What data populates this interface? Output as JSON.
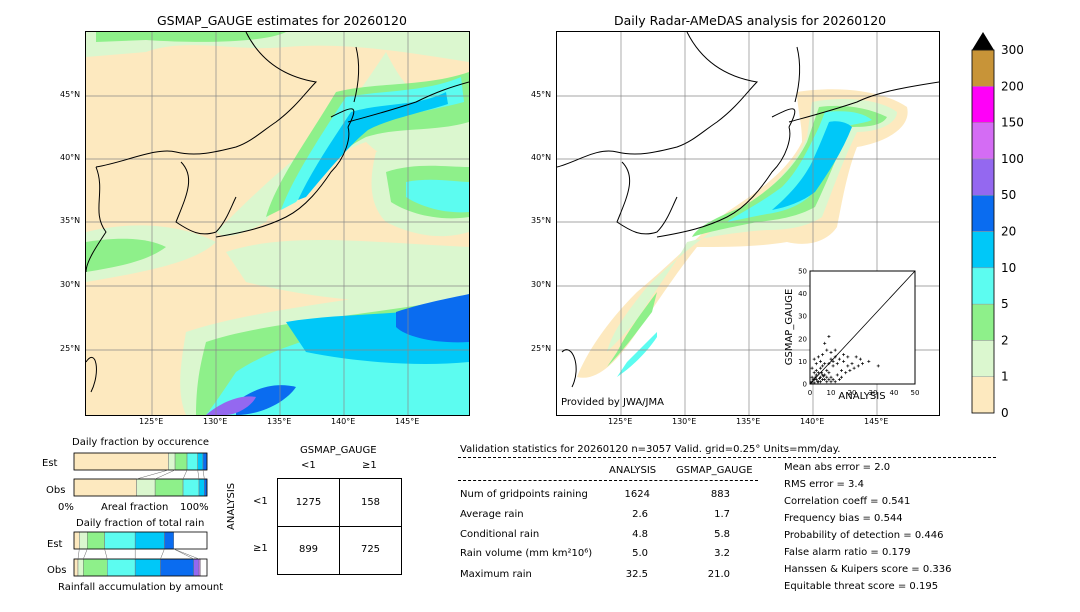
{
  "left_map": {
    "title": "GSMAP_GAUGE estimates for 20260120",
    "lat_labels": [
      "45°N",
      "40°N",
      "35°N",
      "30°N",
      "25°N"
    ],
    "lon_labels": [
      "125°E",
      "130°E",
      "135°E",
      "140°E",
      "145°E"
    ]
  },
  "right_map": {
    "title": "Daily Radar-AMeDAS analysis for 20260120",
    "lat_labels": [
      "45°N",
      "40°N",
      "35°N",
      "30°N",
      "25°N"
    ],
    "lon_labels": [
      "125°E",
      "130°E",
      "135°E",
      "140°E",
      "145°E"
    ],
    "credit": "Provided by JWA/JMA"
  },
  "colorbar": {
    "levels": [
      "0",
      "1",
      "2",
      "5",
      "10",
      "20",
      "50",
      "100",
      "150",
      "200",
      "300"
    ],
    "colors": [
      "#fde9bf",
      "#dbf7cf",
      "#8ef08a",
      "#5cfcf0",
      "#00c8f8",
      "#0a6cf0",
      "#9468f0",
      "#d46cf4",
      "#ff00f8",
      "#c89438"
    ],
    "over_color": "#000000"
  },
  "chart_data": [
    {
      "type": "scatter",
      "title": "",
      "xlabel": "ANALYSIS",
      "ylabel": "GSMAP_GAUGE",
      "xlim": [
        0,
        50
      ],
      "ylim": [
        0,
        50
      ],
      "ticks": [
        "0",
        "10",
        "20",
        "30",
        "40",
        "50"
      ],
      "diagonal": true,
      "points": [
        [
          1,
          1
        ],
        [
          2,
          0.5
        ],
        [
          3,
          2
        ],
        [
          4,
          1
        ],
        [
          5,
          3
        ],
        [
          6,
          2
        ],
        [
          7,
          4
        ],
        [
          8,
          1
        ],
        [
          9,
          2
        ],
        [
          10,
          3
        ],
        [
          11,
          2
        ],
        [
          12,
          1
        ],
        [
          13,
          4
        ],
        [
          14,
          2
        ],
        [
          15,
          3
        ],
        [
          2,
          5
        ],
        [
          3,
          6
        ],
        [
          5,
          7
        ],
        [
          6,
          8
        ],
        [
          8,
          6
        ],
        [
          9,
          9
        ],
        [
          11,
          8
        ],
        [
          13,
          9
        ],
        [
          15,
          6
        ],
        [
          16,
          10
        ],
        [
          18,
          8
        ],
        [
          20,
          9
        ],
        [
          22,
          12
        ],
        [
          24,
          11
        ],
        [
          28,
          10
        ],
        [
          32.5,
          8
        ],
        [
          4,
          12
        ],
        [
          6,
          13
        ],
        [
          8,
          15
        ],
        [
          10,
          14
        ],
        [
          7,
          18
        ],
        [
          9,
          21
        ],
        [
          12,
          15
        ],
        [
          1,
          3
        ],
        [
          2,
          2
        ],
        [
          3,
          4
        ],
        [
          4,
          5
        ],
        [
          5,
          1
        ],
        [
          6,
          4
        ],
        [
          7,
          2
        ],
        [
          8,
          3
        ],
        [
          9,
          5
        ],
        [
          10,
          1
        ],
        [
          0.5,
          0.5
        ],
        [
          1.5,
          2
        ],
        [
          2.5,
          3
        ],
        [
          3.5,
          1
        ],
        [
          4.5,
          2.5
        ],
        [
          5.5,
          5
        ],
        [
          6.5,
          3.5
        ],
        [
          17,
          5
        ],
        [
          19,
          6
        ],
        [
          21,
          7
        ],
        [
          23,
          8
        ],
        [
          25,
          9
        ],
        [
          14,
          11
        ],
        [
          16,
          13
        ],
        [
          18,
          12
        ],
        [
          11,
          10
        ],
        [
          12,
          12
        ],
        [
          3,
          9
        ],
        [
          5,
          10
        ],
        [
          2,
          11
        ],
        [
          1,
          7
        ],
        [
          7,
          9
        ],
        [
          10,
          11
        ]
      ]
    },
    {
      "type": "bar",
      "title": "Daily fraction by occurence",
      "orientation": "horizontal-stacked",
      "categories": [
        "Est",
        "Obs"
      ],
      "series": [
        {
          "name": "0-1",
          "values": [
            0.71,
            0.47
          ]
        },
        {
          "name": "1-2",
          "values": [
            0.05,
            0.14
          ]
        },
        {
          "name": "2-5",
          "values": [
            0.09,
            0.21
          ]
        },
        {
          "name": "5-10",
          "values": [
            0.08,
            0.12
          ]
        },
        {
          "name": "10-20",
          "values": [
            0.04,
            0.04
          ]
        },
        {
          "name": "20-50",
          "values": [
            0.03,
            0.02
          ]
        }
      ],
      "xlabel": "Areal fraction",
      "xtick_left": "0%",
      "xtick_right": "100%"
    },
    {
      "type": "bar",
      "title": "Daily fraction of total rain",
      "orientation": "horizontal-stacked",
      "categories": [
        "Est",
        "Obs"
      ],
      "series": [
        {
          "name": "0-1",
          "values": [
            0.04,
            0.03
          ]
        },
        {
          "name": "1-2",
          "values": [
            0.06,
            0.04
          ]
        },
        {
          "name": "2-5",
          "values": [
            0.13,
            0.18
          ]
        },
        {
          "name": "5-10",
          "values": [
            0.23,
            0.21
          ]
        },
        {
          "name": "10-20",
          "values": [
            0.22,
            0.19
          ]
        },
        {
          "name": "20-50",
          "values": [
            0.07,
            0.25
          ]
        },
        {
          "name": "50-100",
          "values": [
            0.0,
            0.04
          ]
        },
        {
          "name": "100-150",
          "values": [
            0.0,
            0.01
          ]
        }
      ],
      "xlabel": "Rainfall accumulation by amount"
    }
  ],
  "contingency": {
    "header": "GSMAP_GAUGE",
    "col_labels": [
      "<1",
      "≥1"
    ],
    "row_axis": "ANALYSIS",
    "row_labels": [
      "<1",
      "≥1"
    ],
    "cells": [
      [
        "1275",
        "158"
      ],
      [
        "899",
        "725"
      ]
    ]
  },
  "validation": {
    "heading": "Validation statistics for 20260120  n=3057 Valid. grid=0.25° Units=mm/day.",
    "col_analysis": "ANALYSIS",
    "col_gsmap": "GSMAP_GAUGE",
    "rows": [
      {
        "label": "Num of gridpoints raining",
        "analysis": "1624",
        "gsmap": "883"
      },
      {
        "label": "Average rain",
        "analysis": "2.6",
        "gsmap": "1.7"
      },
      {
        "label": "Conditional rain",
        "analysis": "4.8",
        "gsmap": "5.8"
      },
      {
        "label": "Rain volume (mm km²10⁶)",
        "analysis": "5.0",
        "gsmap": "3.2"
      },
      {
        "label": "Maximum rain",
        "analysis": "32.5",
        "gsmap": "21.0"
      }
    ],
    "scores": [
      "Mean abs error =    2.0",
      "RMS error =    3.4",
      "Correlation coeff =  0.541",
      "Frequency bias =  0.544",
      "Probability of detection =  0.446",
      "False alarm ratio =  0.179",
      "Hanssen & Kuipers score =  0.336",
      "Equitable threat score =  0.195"
    ]
  }
}
